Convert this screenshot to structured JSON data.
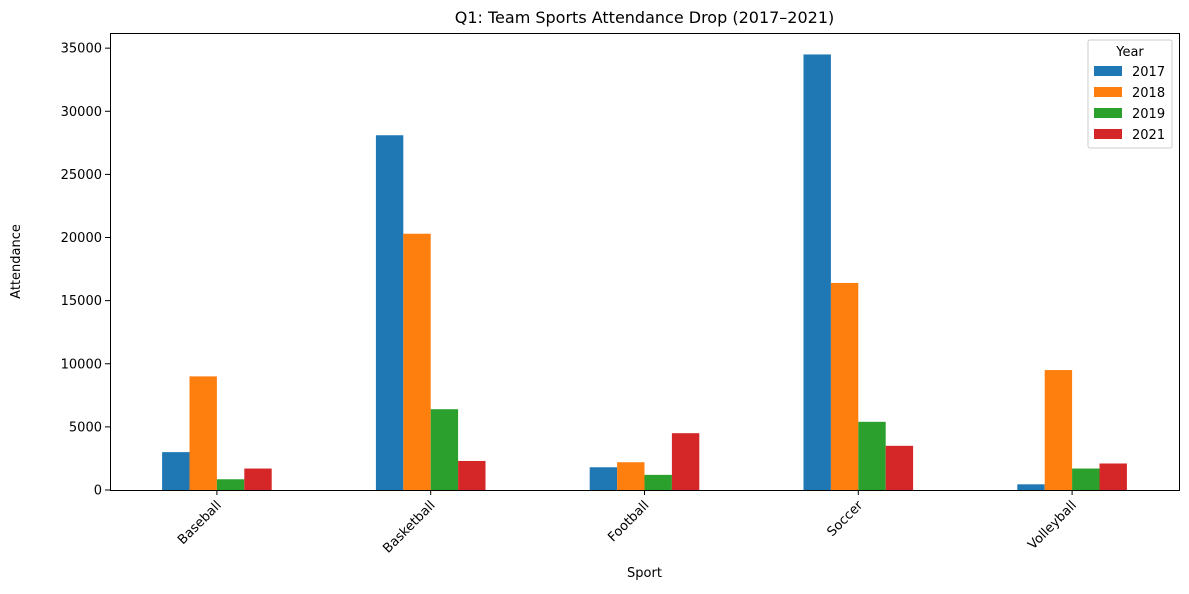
{
  "chart_data": {
    "type": "bar",
    "title": "Q1: Team Sports Attendance Drop (2017–2021)",
    "xlabel": "Sport",
    "ylabel": "Attendance",
    "categories": [
      "Baseball",
      "Basketball",
      "Football",
      "Soccer",
      "Volleyball"
    ],
    "series": [
      {
        "name": "2017",
        "color": "#1f77b4",
        "values": [
          3000,
          28100,
          1800,
          34500,
          450
        ]
      },
      {
        "name": "2018",
        "color": "#ff7f0e",
        "values": [
          9000,
          20300,
          2200,
          16400,
          9500
        ]
      },
      {
        "name": "2019",
        "color": "#2ca02c",
        "values": [
          850,
          6400,
          1200,
          5400,
          1700
        ]
      },
      {
        "name": "2021",
        "color": "#d62728",
        "values": [
          1700,
          2300,
          4500,
          3500,
          2100
        ]
      }
    ],
    "ylim": [
      0,
      36200
    ],
    "yticks": [
      0,
      5000,
      10000,
      15000,
      20000,
      25000,
      30000,
      35000
    ],
    "grid": false,
    "legend": {
      "title": "Year",
      "placement": "top-right"
    },
    "xtick_rotation_deg": 45
  }
}
